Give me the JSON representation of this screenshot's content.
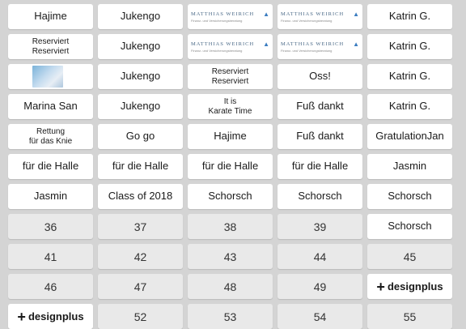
{
  "grid": {
    "cells": [
      {
        "type": "label",
        "text": "Hajime"
      },
      {
        "type": "label",
        "text": "Jukengo"
      },
      {
        "type": "logo-mw",
        "name": "MATTHIAS WEIRICH",
        "sub": "Finanz- und Versicherungsberatung"
      },
      {
        "type": "logo-mw",
        "name": "MATTHIAS WEIRICH",
        "sub": "Finanz- und Versicherungsberatung"
      },
      {
        "type": "label",
        "text": "Katrin G."
      },
      {
        "type": "label",
        "text": "Reserviert\nReserviert"
      },
      {
        "type": "label",
        "text": "Jukengo"
      },
      {
        "type": "logo-mw",
        "name": "MATTHIAS WEIRICH",
        "sub": "Finanz- und Versicherungsberatung"
      },
      {
        "type": "logo-mw",
        "name": "MATTHIAS WEIRICH",
        "sub": "Finanz- und Versicherungsberatung"
      },
      {
        "type": "label",
        "text": "Katrin G."
      },
      {
        "type": "photo"
      },
      {
        "type": "label",
        "text": "Jukengo"
      },
      {
        "type": "label",
        "text": "Reserviert\nReserviert"
      },
      {
        "type": "label",
        "text": "Oss!"
      },
      {
        "type": "label",
        "text": "Katrin G."
      },
      {
        "type": "label",
        "text": "Marina San"
      },
      {
        "type": "label",
        "text": "Jukengo"
      },
      {
        "type": "label",
        "text": "It is\nKarate Time"
      },
      {
        "type": "label",
        "text": "Fuß dankt"
      },
      {
        "type": "label",
        "text": "Katrin G."
      },
      {
        "type": "label",
        "text": "Rettung\nfür das Knie"
      },
      {
        "type": "label",
        "text": "Go go"
      },
      {
        "type": "label",
        "text": "Hajime"
      },
      {
        "type": "label",
        "text": "Fuß dankt"
      },
      {
        "type": "label",
        "text": "GratulationJan"
      },
      {
        "type": "label",
        "text": "für die Halle"
      },
      {
        "type": "label",
        "text": "für die Halle"
      },
      {
        "type": "label",
        "text": "für die Halle"
      },
      {
        "type": "label",
        "text": "für die Halle"
      },
      {
        "type": "label",
        "text": "Jasmin"
      },
      {
        "type": "label",
        "text": "Jasmin"
      },
      {
        "type": "label",
        "text": "Class of 2018"
      },
      {
        "type": "label",
        "text": "Schorsch"
      },
      {
        "type": "label",
        "text": "Schorsch"
      },
      {
        "type": "label",
        "text": "Schorsch"
      },
      {
        "type": "number",
        "text": "36"
      },
      {
        "type": "number",
        "text": "37"
      },
      {
        "type": "number",
        "text": "38"
      },
      {
        "type": "number",
        "text": "39"
      },
      {
        "type": "label",
        "text": "Schorsch"
      },
      {
        "type": "number",
        "text": "41"
      },
      {
        "type": "number",
        "text": "42"
      },
      {
        "type": "number",
        "text": "43"
      },
      {
        "type": "number",
        "text": "44"
      },
      {
        "type": "number",
        "text": "45"
      },
      {
        "type": "number",
        "text": "46"
      },
      {
        "type": "number",
        "text": "47"
      },
      {
        "type": "number",
        "text": "48"
      },
      {
        "type": "number",
        "text": "49"
      },
      {
        "type": "logo-dp",
        "text": "designplus"
      },
      {
        "type": "logo-dp",
        "text": "designplus"
      },
      {
        "type": "number",
        "text": "52"
      },
      {
        "type": "number",
        "text": "53"
      },
      {
        "type": "number",
        "text": "54"
      },
      {
        "type": "number",
        "text": "55"
      }
    ]
  }
}
